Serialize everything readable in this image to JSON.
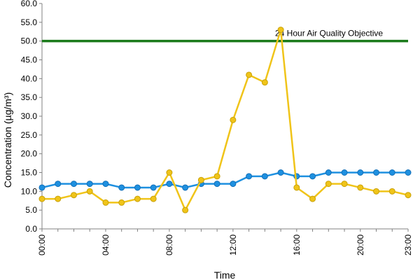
{
  "chart_data": {
    "type": "line",
    "title": "",
    "xlabel": "Time",
    "ylabel": "Concentration (µg/m³)",
    "x": [
      "00:00",
      "01:00",
      "02:00",
      "03:00",
      "04:00",
      "05:00",
      "06:00",
      "07:00",
      "08:00",
      "09:00",
      "10:00",
      "11:00",
      "12:00",
      "13:00",
      "14:00",
      "15:00",
      "16:00",
      "17:00",
      "18:00",
      "19:00",
      "20:00",
      "21:00",
      "22:00",
      "23:00"
    ],
    "x_tick_labels": [
      "00:00",
      "04:00",
      "08:00",
      "12:00",
      "16:00",
      "20:00",
      "23:00"
    ],
    "y_tick_labels": [
      "0.0",
      "5.0",
      "10.0",
      "15.0",
      "20.0",
      "25.0",
      "30.0",
      "35.0",
      "40.0",
      "45.0",
      "50.0",
      "55.0",
      "60.0"
    ],
    "ylim": [
      0,
      60
    ],
    "grid": false,
    "series": [
      {
        "color": "#1e90e0",
        "values": [
          11,
          12,
          12,
          12,
          12,
          11,
          11,
          11,
          12,
          11,
          12,
          12,
          12,
          14,
          14,
          15,
          14,
          14,
          15,
          15,
          15,
          15,
          15,
          15
        ]
      },
      {
        "color": "#f0c419",
        "values": [
          8,
          8,
          9,
          10,
          7,
          7,
          8,
          8,
          15,
          5,
          13,
          14,
          29,
          41,
          39,
          53,
          11,
          8,
          12,
          12,
          11,
          10,
          10,
          9
        ]
      }
    ],
    "reference_line": {
      "value": 50,
      "label": "24 Hour Air Quality Objective",
      "color": "#1a7a1a"
    }
  }
}
